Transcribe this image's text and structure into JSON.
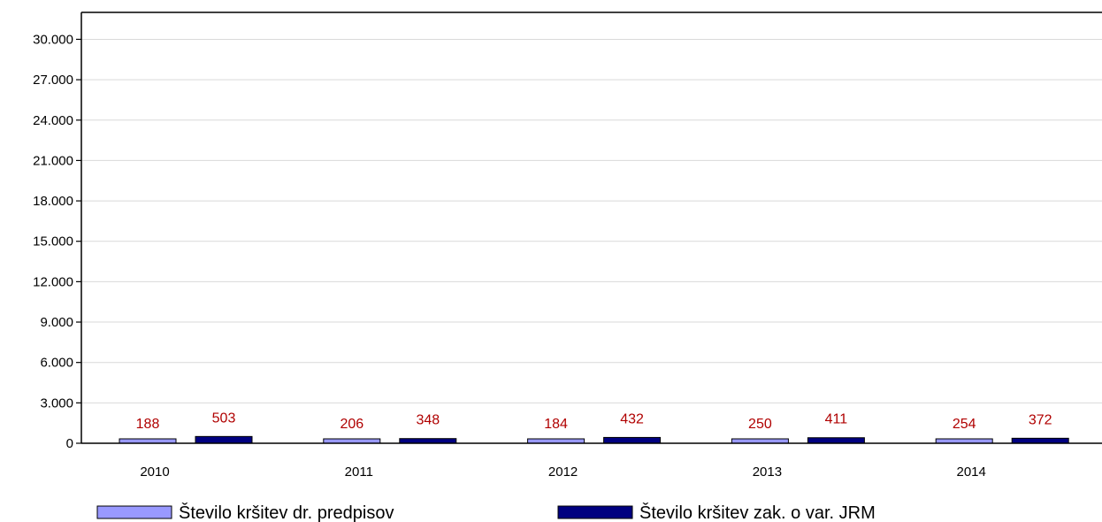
{
  "chart_data": {
    "type": "bar",
    "categories": [
      "2010",
      "2011",
      "2012",
      "2013",
      "2014"
    ],
    "series": [
      {
        "name": "Število kršitev dr. predpisov",
        "values": [
          188,
          206,
          184,
          250,
          254
        ],
        "color": "#9999ff"
      },
      {
        "name": "Število kršitev zak. o var. JRM",
        "values": [
          503,
          348,
          432,
          411,
          372
        ],
        "color": "#000080"
      }
    ],
    "yticks": [
      0,
      3000,
      6000,
      9000,
      12000,
      15000,
      18000,
      21000,
      24000,
      27000,
      30000
    ],
    "ytick_labels": [
      "0",
      "3.000",
      "6.000",
      "9.000",
      "12.000",
      "15.000",
      "18.000",
      "21.000",
      "24.000",
      "27.000",
      "30.000"
    ],
    "ylim": [
      0,
      32000
    ],
    "grid": true,
    "legend_position": "bottom",
    "data_label_color": "#b00000"
  }
}
